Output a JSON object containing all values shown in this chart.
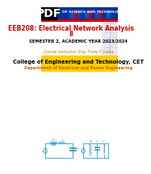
{
  "title_main": "EEB208: Electrical Network Analysis II",
  "subtitle": "SEMESTER 2, ACADEMIC YEAR 2023/2024",
  "instructor": "Course Instructor: Eng. Fredy F. Latta",
  "college": "College of Engineering and Technology, CET",
  "department": "Department of Electrical and Power Engineering",
  "header_text": "OF SCIENCE AND TECHNOLOGY",
  "pdf_label": "PDF",
  "bg_color": "#ffffff",
  "header_bg": "#003399",
  "title_color": "#cc0000",
  "subtitle_color": "#000000",
  "instructor_color": "#cc6600",
  "college_bg": "#ffcc00",
  "college_color": "#000000",
  "dept_color": "#cc6600",
  "pdf_bg": "#000000",
  "pdf_color": "#ffffff",
  "circuit_color": "#3399cc",
  "sq_colors": [
    "#003399",
    "#0055cc",
    "#cc0000",
    "#0044bb",
    "#003399",
    "#0055cc",
    "#cc0000",
    "#003399",
    "#0055cc",
    "#cc0000",
    "#003399",
    "#0055cc"
  ],
  "red_line_color": "#cc0000"
}
